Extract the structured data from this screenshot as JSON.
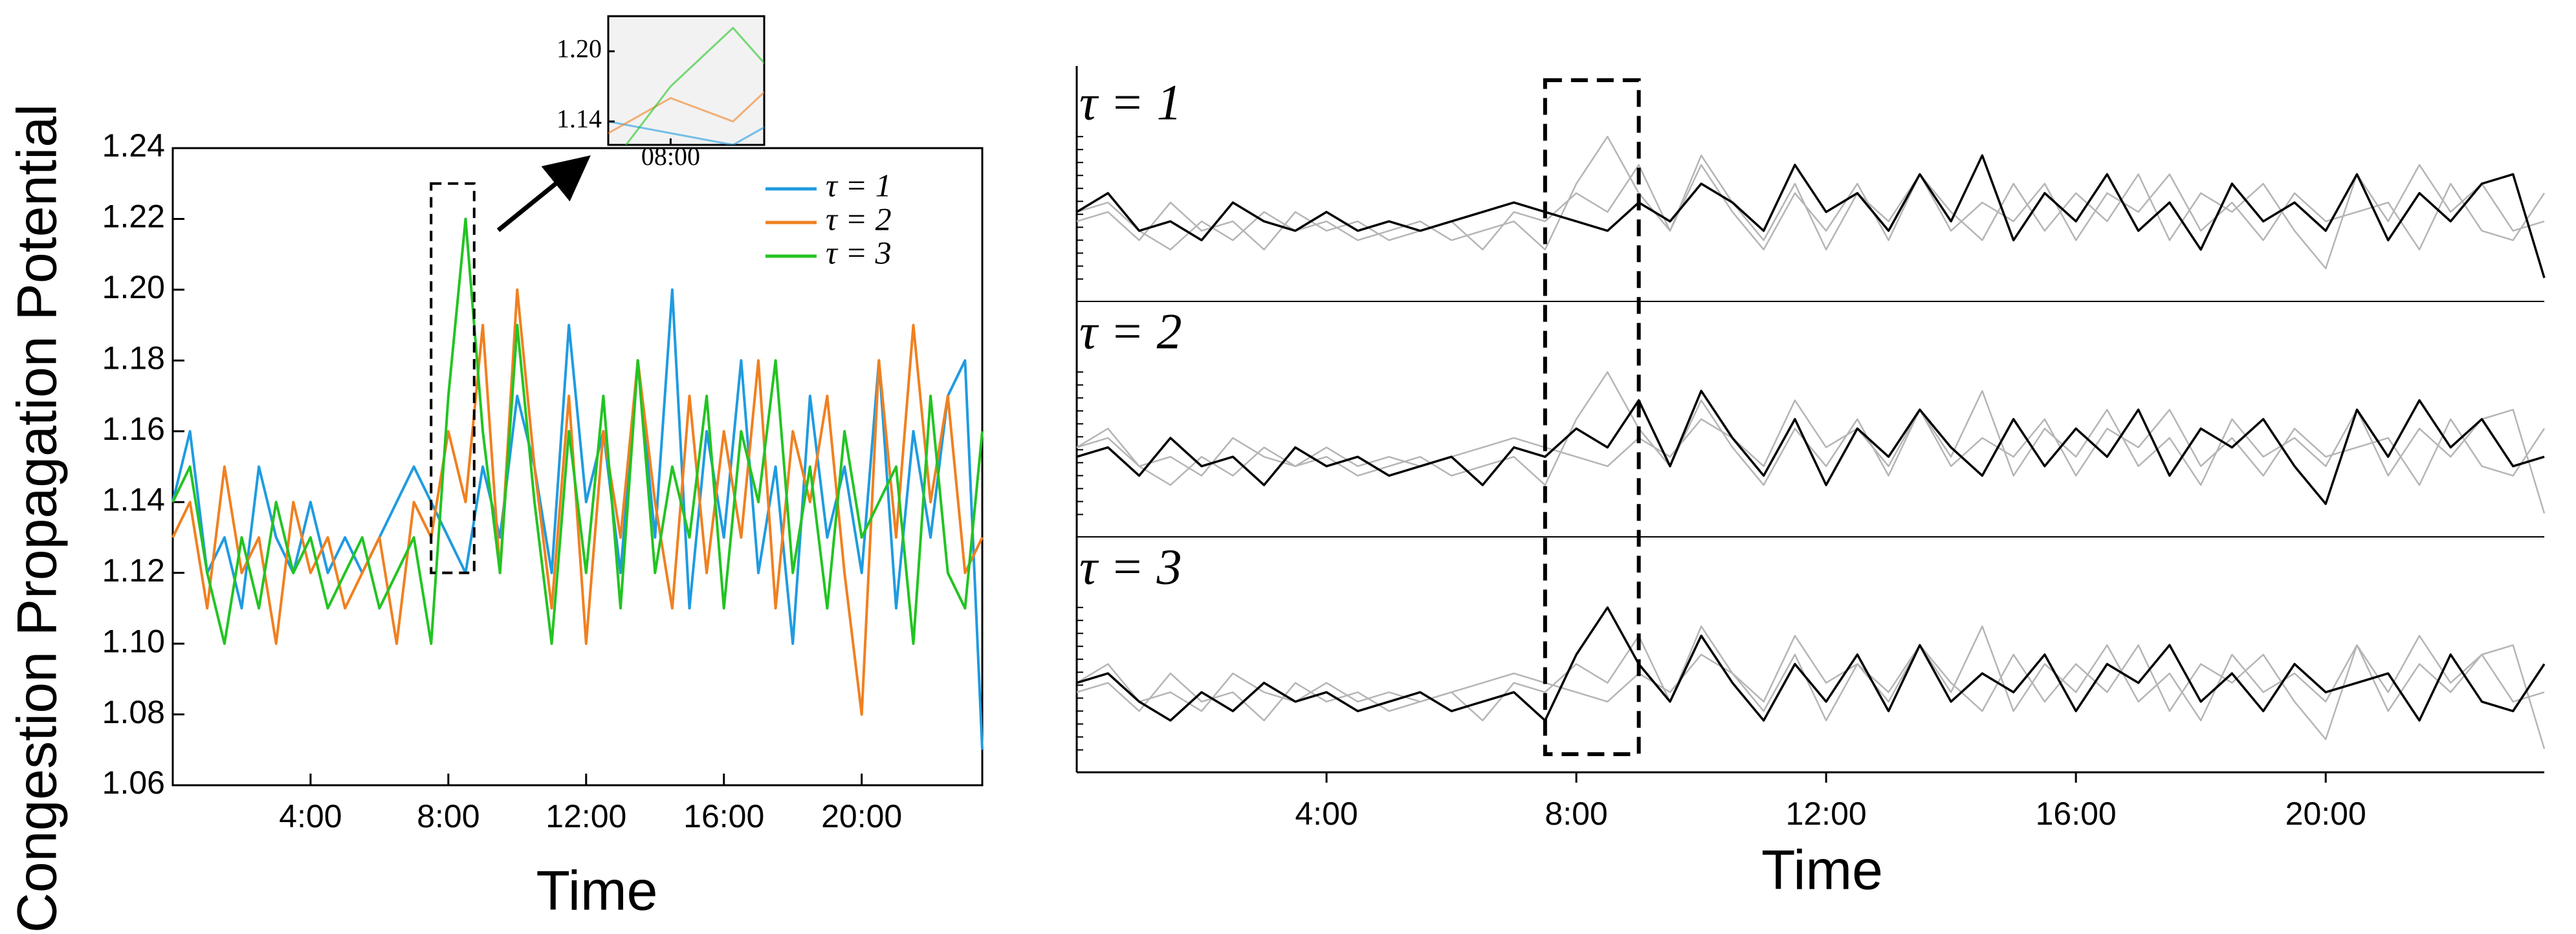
{
  "chart_data": [
    {
      "type": "line",
      "ylabel": "Congestion Propagation Potential",
      "xlabel": "Time",
      "x": [
        0,
        0.5,
        1,
        1.5,
        2,
        2.5,
        3,
        3.5,
        4,
        4.5,
        5,
        5.5,
        6,
        6.5,
        7,
        7.5,
        8,
        8.5,
        9,
        9.5,
        10,
        10.5,
        11,
        11.5,
        12,
        12.5,
        13,
        13.5,
        14,
        14.5,
        15,
        15.5,
        16,
        16.5,
        17,
        17.5,
        18,
        18.5,
        19,
        19.5,
        20,
        20.5,
        21,
        21.5,
        22,
        22.5,
        23,
        23.5
      ],
      "xlim": [
        0,
        23.5
      ],
      "xticks": [
        {
          "value": 4,
          "label": "4:00"
        },
        {
          "value": 8,
          "label": "8:00"
        },
        {
          "value": 12,
          "label": "12:00"
        },
        {
          "value": 16,
          "label": "16:00"
        },
        {
          "value": 20,
          "label": "20:00"
        }
      ],
      "ylim": [
        1.06,
        1.24
      ],
      "yticks": [
        1.06,
        1.08,
        {
          "value": 1.1,
          "label": "1.10"
        },
        1.12,
        1.14,
        1.16,
        1.18,
        {
          "value": 1.2,
          "label": "1.20"
        },
        1.22,
        1.24
      ],
      "legend": "upper right",
      "series": [
        {
          "name": "τ = 1",
          "color": "#1f9be0",
          "values": [
            1.14,
            1.16,
            1.12,
            1.13,
            1.11,
            1.15,
            1.13,
            1.12,
            1.14,
            1.12,
            1.13,
            1.12,
            1.13,
            1.14,
            1.15,
            1.14,
            1.13,
            1.12,
            1.15,
            1.13,
            1.17,
            1.15,
            1.12,
            1.19,
            1.14,
            1.16,
            1.12,
            1.18,
            1.13,
            1.2,
            1.11,
            1.16,
            1.13,
            1.18,
            1.12,
            1.15,
            1.1,
            1.17,
            1.13,
            1.15,
            1.12,
            1.18,
            1.11,
            1.16,
            1.13,
            1.17,
            1.18,
            1.07
          ]
        },
        {
          "name": "τ = 2",
          "color": "#f08020",
          "values": [
            1.13,
            1.14,
            1.11,
            1.15,
            1.12,
            1.13,
            1.1,
            1.14,
            1.12,
            1.13,
            1.11,
            1.12,
            1.13,
            1.1,
            1.14,
            1.13,
            1.16,
            1.14,
            1.19,
            1.12,
            1.2,
            1.15,
            1.11,
            1.17,
            1.1,
            1.16,
            1.13,
            1.18,
            1.14,
            1.11,
            1.17,
            1.12,
            1.16,
            1.13,
            1.18,
            1.11,
            1.16,
            1.14,
            1.17,
            1.12,
            1.08,
            1.18,
            1.13,
            1.19,
            1.14,
            1.17,
            1.12,
            1.13
          ]
        },
        {
          "name": "τ = 3",
          "color": "#22c422",
          "values": [
            1.14,
            1.15,
            1.12,
            1.1,
            1.13,
            1.11,
            1.14,
            1.12,
            1.13,
            1.11,
            1.12,
            1.13,
            1.11,
            1.12,
            1.13,
            1.1,
            1.17,
            1.22,
            1.16,
            1.12,
            1.19,
            1.14,
            1.1,
            1.16,
            1.12,
            1.17,
            1.11,
            1.18,
            1.12,
            1.15,
            1.13,
            1.17,
            1.11,
            1.16,
            1.14,
            1.18,
            1.12,
            1.15,
            1.11,
            1.16,
            1.13,
            1.14,
            1.15,
            1.1,
            1.17,
            1.12,
            1.11,
            1.16
          ]
        }
      ],
      "inset": {
        "xlim": [
          7.5,
          8.75
        ],
        "ylim": [
          1.12,
          1.23
        ],
        "xticks": [
          {
            "value": 8,
            "label": "08:00"
          }
        ],
        "yticks": [
          1.14,
          {
            "value": 1.2,
            "label": "1.20"
          }
        ]
      }
    },
    {
      "type": "line-panels",
      "xlabel": "Time",
      "xlim": [
        0,
        23.5
      ],
      "xticks": [
        {
          "value": 4,
          "label": "4:00"
        },
        {
          "value": 8,
          "label": "8:00"
        },
        {
          "value": 12,
          "label": "12:00"
        },
        {
          "value": 16,
          "label": "16:00"
        },
        {
          "value": 20,
          "label": "20:00"
        }
      ],
      "highlight_xlim": [
        7.5,
        9
      ],
      "highlight_color": "#000000",
      "other_color": "#b5b5b5",
      "panels": [
        {
          "label": "τ = 1"
        },
        {
          "label": "τ = 2"
        },
        {
          "label": "τ = 3"
        }
      ]
    }
  ]
}
